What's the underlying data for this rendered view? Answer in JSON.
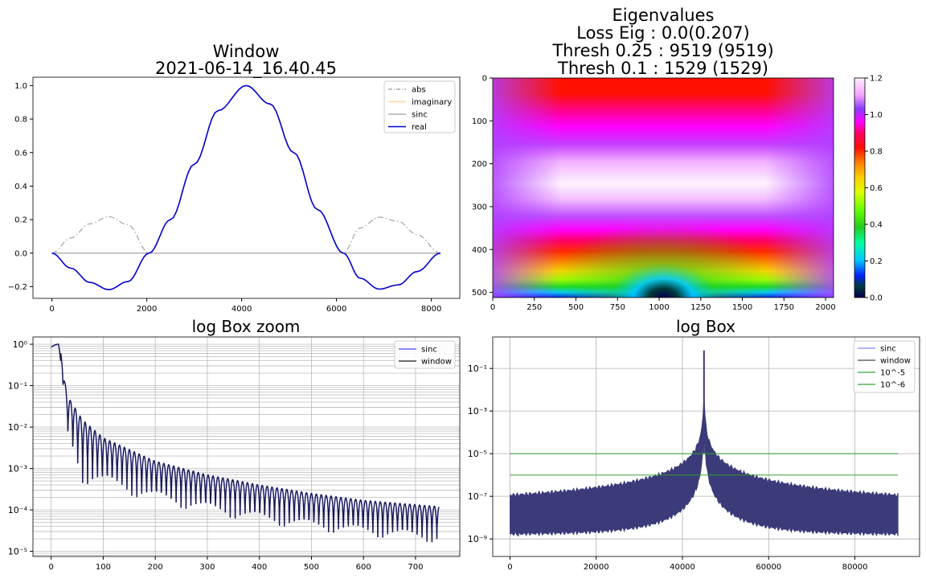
{
  "chart_data": [
    {
      "type": "line",
      "title": [
        "Window",
        "2021-06-14_16.40.45"
      ],
      "xlabel": "",
      "ylabel": "",
      "xlim": [
        -400,
        8600
      ],
      "ylim": [
        -0.27,
        1.05
      ],
      "xticks": [
        0,
        2000,
        4000,
        6000,
        8000
      ],
      "yticks": [
        -0.2,
        0.0,
        0.2,
        0.4,
        0.6,
        0.8,
        1.0
      ],
      "ytick_labels": [
        "−0.2",
        "0.0",
        "0.2",
        "0.4",
        "0.6",
        "0.8",
        "1.0"
      ],
      "grid": false,
      "legend": "upper-right",
      "series": [
        {
          "name": "abs",
          "color": "#a9a9a9",
          "dash": "dashdot",
          "x": [
            0,
            400,
            800,
            1200,
            1600,
            2048,
            2500,
            3000,
            3500,
            4096,
            4600,
            5100,
            5600,
            6144,
            6500,
            6900,
            7300,
            7700,
            8192
          ],
          "y": [
            0,
            0.09,
            0.175,
            0.218,
            0.17,
            0,
            0.2,
            0.53,
            0.85,
            1.0,
            0.89,
            0.6,
            0.26,
            0,
            0.15,
            0.215,
            0.19,
            0.11,
            0
          ]
        },
        {
          "name": "imaginary",
          "color": "#ffd59a",
          "dash": "solid",
          "x": [
            0,
            8192
          ],
          "y": [
            0,
            0
          ]
        },
        {
          "name": "sinc",
          "color": "#b0b0b0",
          "dash": "solid",
          "x": [
            0,
            8192
          ],
          "y": [
            0,
            0
          ]
        },
        {
          "name": "real",
          "color": "#0000cd",
          "dash": "solid",
          "x": [
            0,
            400,
            800,
            1200,
            1600,
            2048,
            2500,
            3000,
            3500,
            4096,
            4600,
            5100,
            5600,
            6144,
            6500,
            6900,
            7300,
            7700,
            8192
          ],
          "y": [
            0,
            -0.09,
            -0.175,
            -0.218,
            -0.17,
            0,
            0.2,
            0.53,
            0.85,
            1.0,
            0.89,
            0.6,
            0.26,
            0,
            -0.15,
            -0.215,
            -0.19,
            -0.11,
            0
          ]
        }
      ]
    },
    {
      "type": "heatmap",
      "title": [
        "Eigenvalues",
        "Loss Eig : 0.0(0.207)",
        "Thresh 0.25 : 9519 (9519)",
        "Thresh 0.1 : 1529 (1529)"
      ],
      "xlabel": "",
      "ylabel": "",
      "xlim": [
        0,
        2048
      ],
      "ylim": [
        512,
        0
      ],
      "xticks": [
        0,
        250,
        500,
        750,
        1000,
        1250,
        1500,
        1750,
        2000
      ],
      "yticks": [
        0,
        100,
        200,
        300,
        400,
        500
      ],
      "colormap": "gist_ncar",
      "colorbar_range": [
        0.0,
        1.2
      ],
      "colorbar_ticks": [
        0.0,
        0.2,
        0.4,
        0.6,
        0.8,
        1.0,
        1.2
      ],
      "grid": false
    },
    {
      "type": "line",
      "title": "log Box zoom",
      "xlabel": "",
      "ylabel": "",
      "yscale": "log",
      "xlim": [
        -35,
        785
      ],
      "ylim": [
        7.5e-06,
        1.5
      ],
      "xticks": [
        0,
        100,
        200,
        300,
        400,
        500,
        600,
        700
      ],
      "yticks": [
        1e-05,
        0.0001,
        0.001,
        0.01,
        0.1,
        1
      ],
      "ytick_labels": [
        "10⁻⁵",
        "10⁻⁴",
        "10⁻³",
        "10⁻²",
        "10⁻¹",
        "10⁰"
      ],
      "grid": true,
      "legend": "upper-right",
      "series": [
        {
          "name": "sinc",
          "color": "#0000ff"
        },
        {
          "name": "window",
          "color": "#000000"
        }
      ],
      "envelope": {
        "x": [
          0,
          12,
          16,
          30,
          60,
          100,
          200,
          300,
          400,
          500,
          600,
          745
        ],
        "peaks": [
          0.85,
          1.0,
          1.0,
          0.06,
          0.015,
          0.0055,
          0.0015,
          0.0007,
          0.0004,
          0.00025,
          0.00017,
          0.00012
        ],
        "troughs": [
          0.85,
          1.0,
          1.0,
          0.003,
          0.0002,
          0.00018,
          9e-05,
          5e-05,
          3e-05,
          2e-05,
          1.5e-05,
          1e-05
        ]
      }
    },
    {
      "type": "line",
      "title": "log Box",
      "xlabel": "",
      "ylabel": "",
      "yscale": "log",
      "xlim": [
        -4000,
        95000
      ],
      "ylim": [
        1.5e-10,
        3
      ],
      "xticks": [
        0,
        20000,
        40000,
        60000,
        80000
      ],
      "yticks": [
        1e-09,
        1e-07,
        1e-05,
        0.001,
        0.1
      ],
      "ytick_labels": [
        "10⁻⁹",
        "10⁻⁷",
        "10⁻⁵",
        "10⁻³",
        "10⁻¹"
      ],
      "grid": true,
      "legend": "upper-right",
      "series": [
        {
          "name": "sinc",
          "color": "#8080ff"
        },
        {
          "name": "window",
          "color": "#404040"
        },
        {
          "name": "10^-5",
          "color": "#2ca02c",
          "y": 1e-05
        },
        {
          "name": "10^-6",
          "color": "#2ca02c",
          "y": 1e-06
        }
      ],
      "band": {
        "x_start": 0,
        "x_end": 90000,
        "center": 45000,
        "peak": 0.7,
        "color": "#3b3b7a"
      }
    }
  ]
}
